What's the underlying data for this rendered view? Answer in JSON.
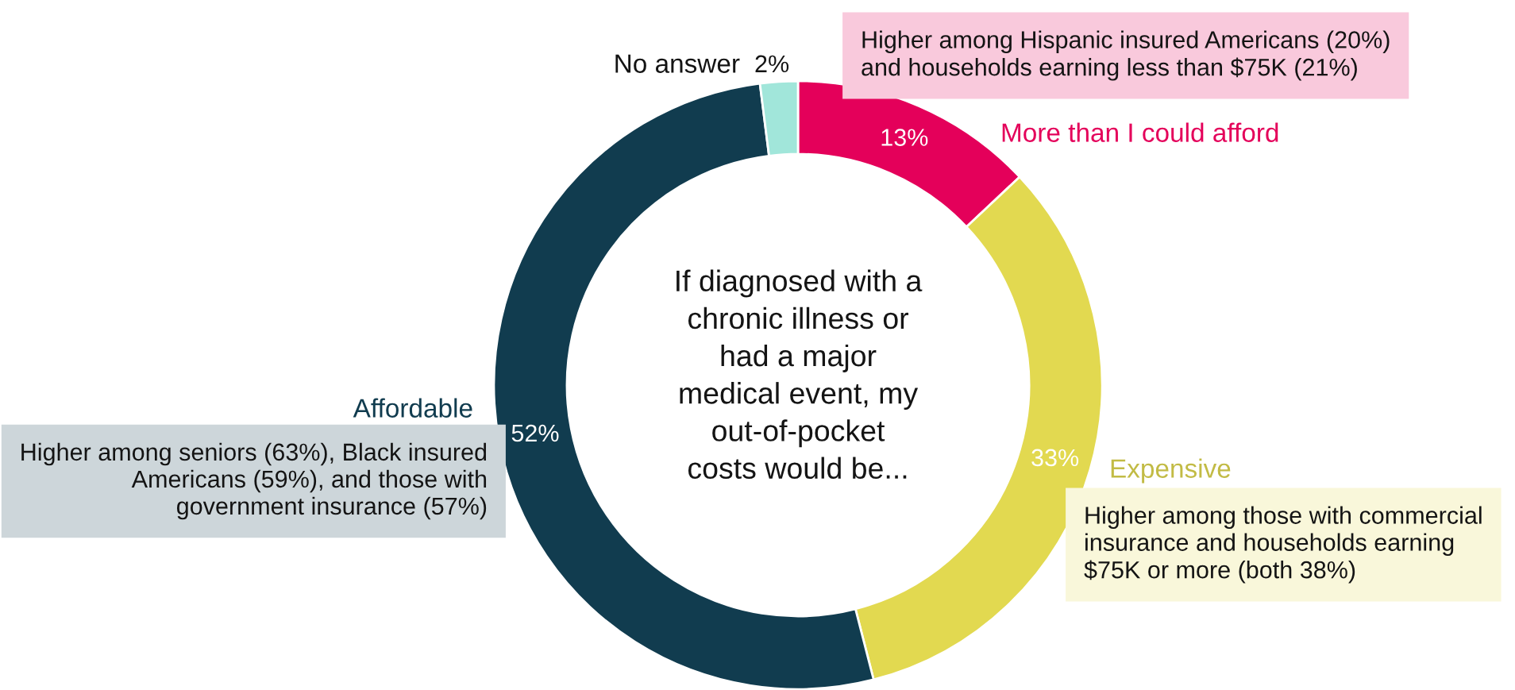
{
  "chart_data": {
    "type": "donut",
    "title": "If diagnosed with a\nchronic illness or\nhad a major\nmedical event, my\nout-of-pocket\ncosts would be...",
    "categories": [
      "More than I could afford",
      "Expensive",
      "Affordable",
      "No answer"
    ],
    "values": [
      13,
      33,
      52,
      2
    ],
    "value_labels": [
      "13%",
      "33%",
      "52%",
      "2%"
    ],
    "colors": [
      "#e4005a",
      "#e2d950",
      "#113c4f",
      "#a1e6da"
    ],
    "annotations": [
      "Higher among Hispanic insured Americans (20%)\nand households earning less than $75K (21%)",
      "Higher among those with commercial\ninsurance and households earning\n$75K or more (both 38%)",
      "Higher among seniors (63%), Black insured\nAmericans (59%), and those with\ngovernment insurance (57%)"
    ]
  }
}
